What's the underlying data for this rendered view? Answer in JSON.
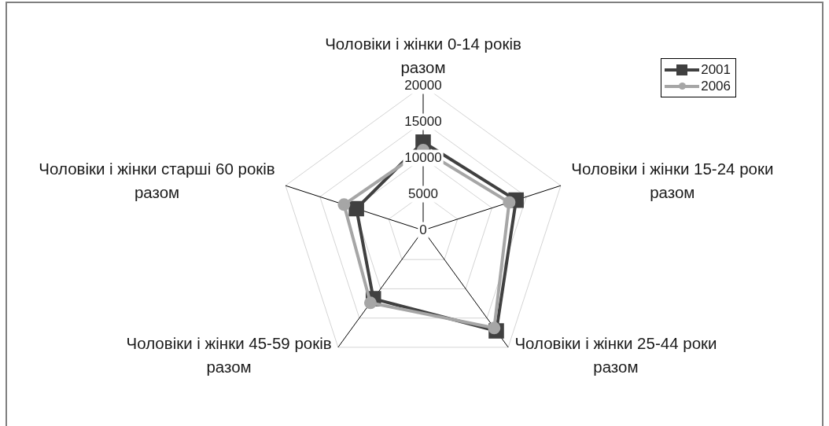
{
  "chart_data": {
    "type": "radar",
    "categories": [
      "Чоловіки і жінки 0-14 років разом",
      "Чоловіки і жінки 15-24 роки разом",
      "Чоловіки і жінки 25-44 роки разом",
      "Чоловіки і жінки 45-59 років разом",
      "Чоловіки і жінки старші 60 років разом"
    ],
    "series": [
      {
        "name": "2001",
        "color": "#404040",
        "marker": "square",
        "values": [
          12200,
          13500,
          17200,
          11700,
          9700
        ]
      },
      {
        "name": "2006",
        "color": "#a6a6a6",
        "marker": "circle",
        "values": [
          11100,
          12500,
          16700,
          12400,
          11500
        ]
      }
    ],
    "ylim": [
      0,
      20000
    ],
    "yticks": [
      0,
      5000,
      10000,
      15000,
      20000
    ],
    "grid": true,
    "legend": "top right"
  }
}
